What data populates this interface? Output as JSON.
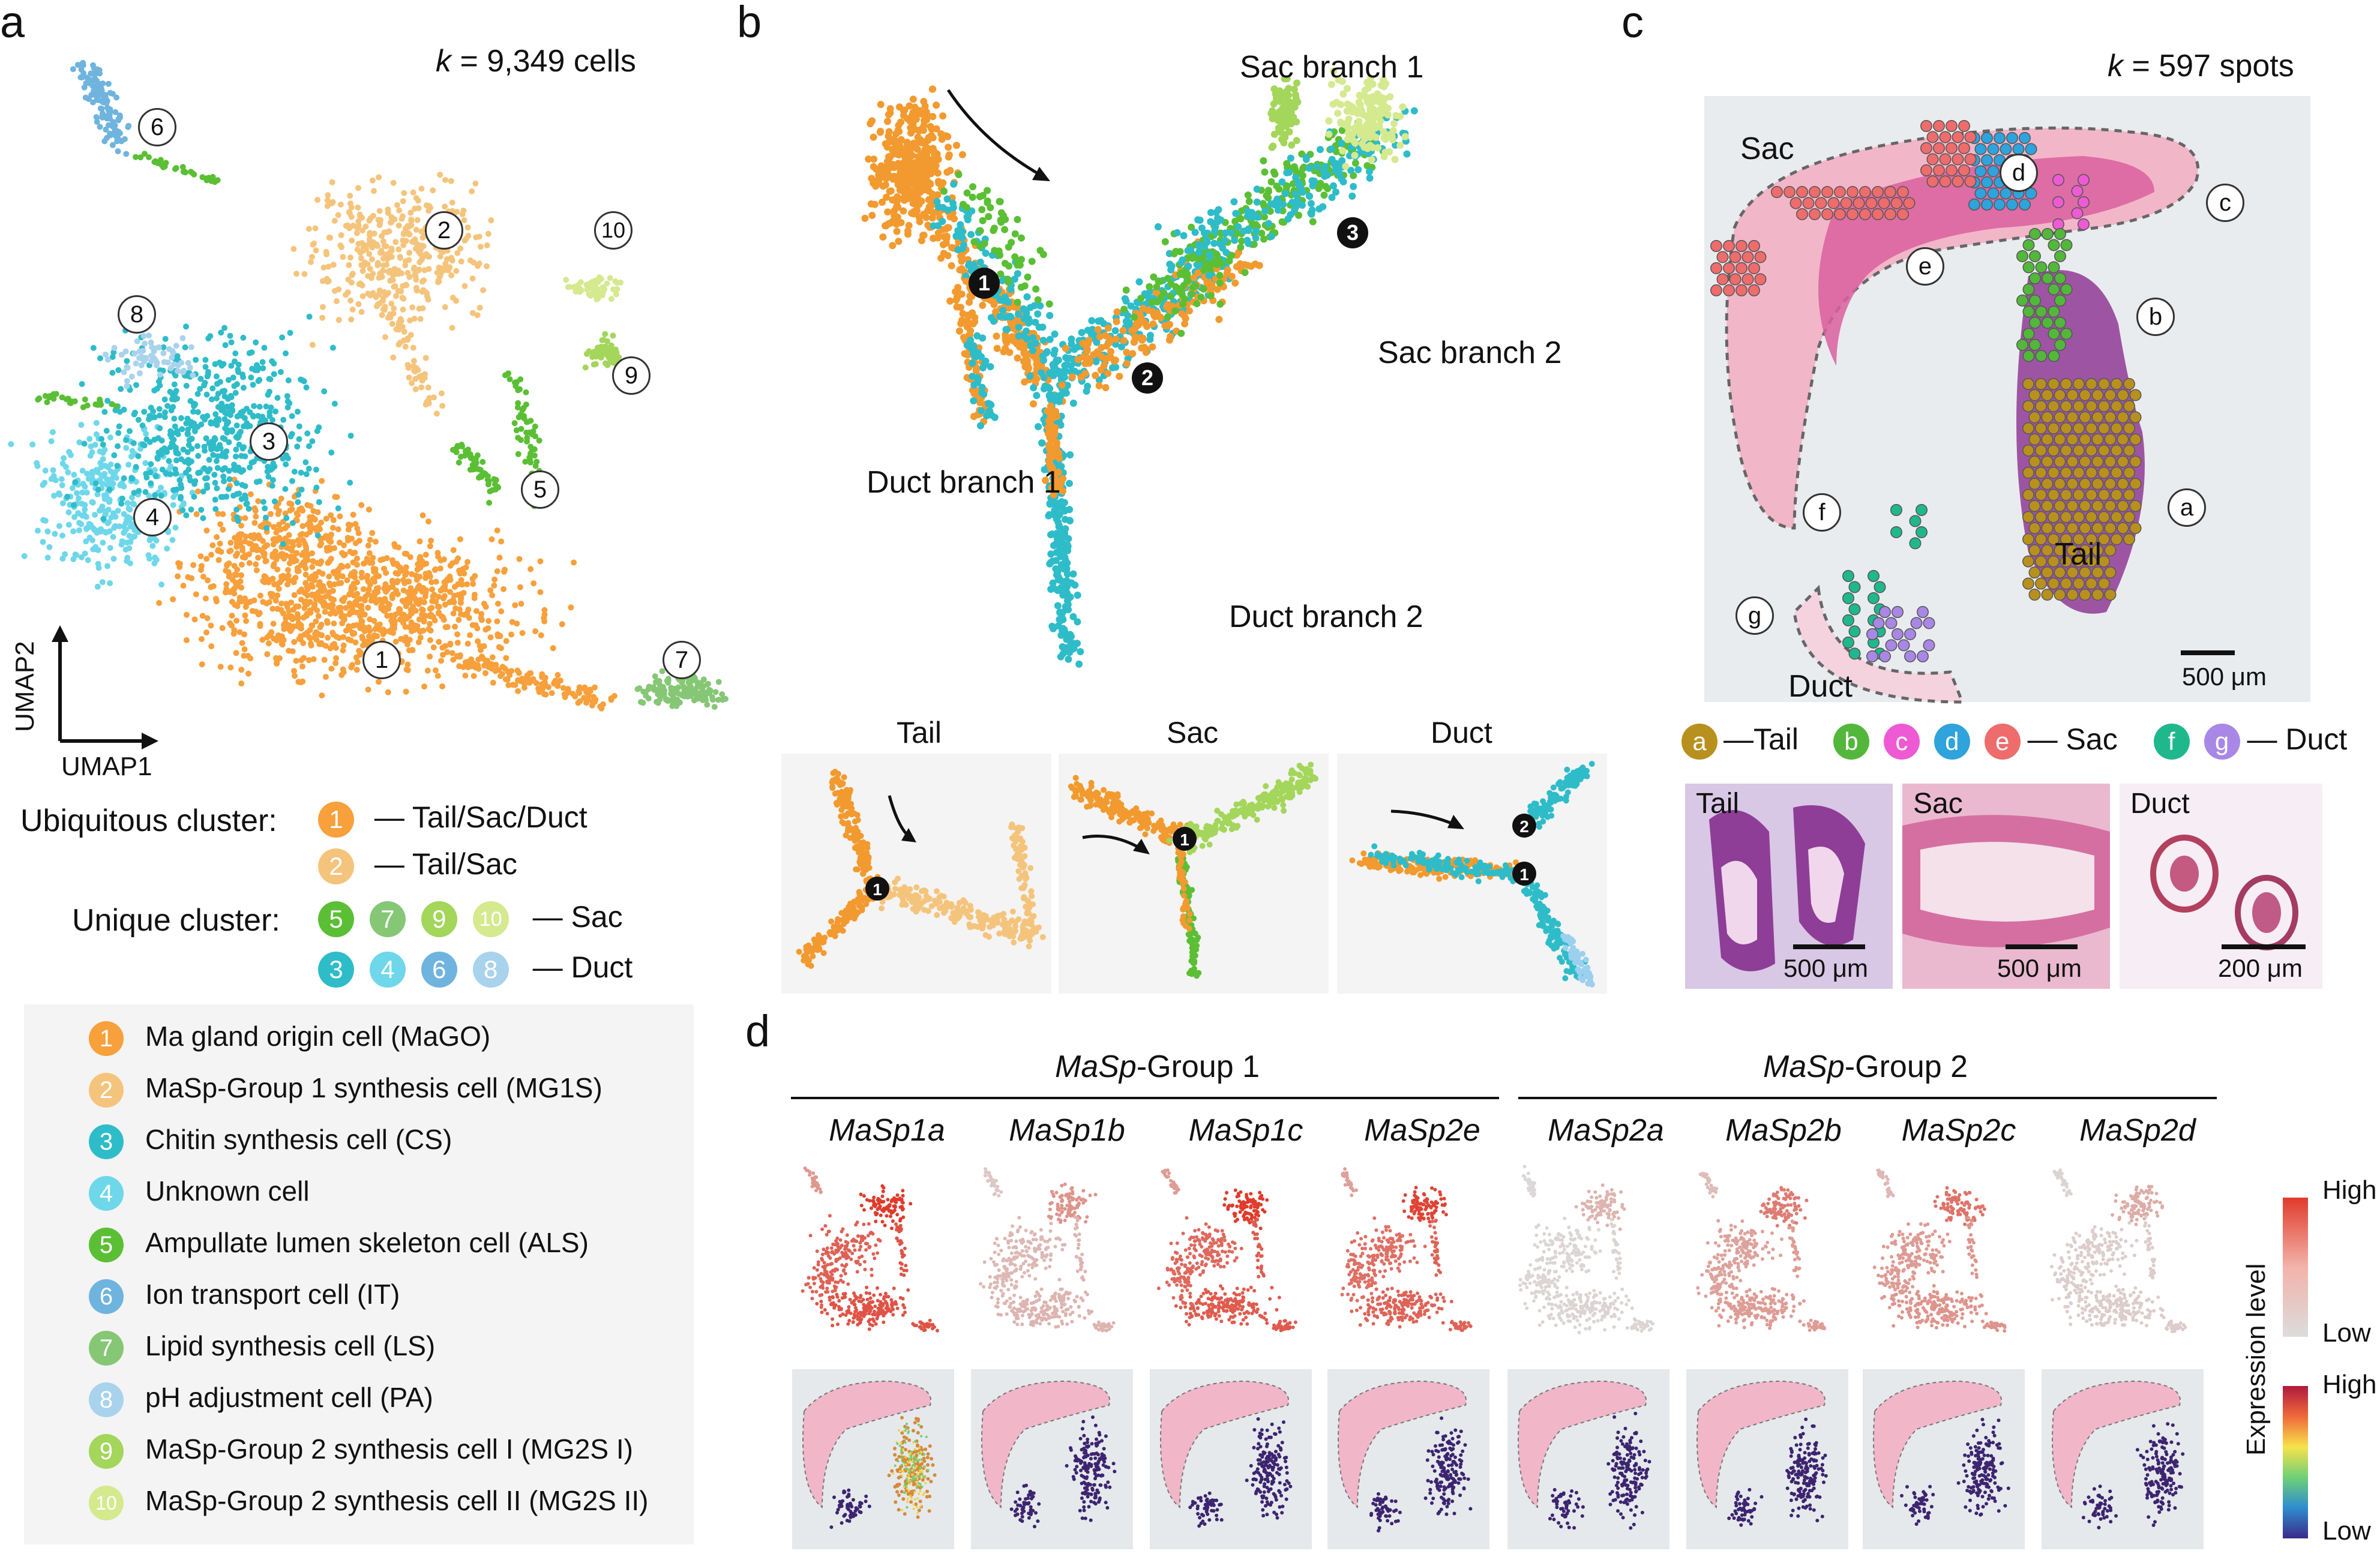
{
  "panel_labels": {
    "a": "a",
    "b": "b",
    "c": "c",
    "d": "d"
  },
  "panel_a": {
    "cell_count_k": "k",
    "cell_count": " = 9,349 cells",
    "axis_x": "UMAP1",
    "axis_y": "UMAP2",
    "cluster_numbers": [
      "1",
      "2",
      "3",
      "4",
      "5",
      "6",
      "7",
      "8",
      "9",
      "10"
    ],
    "ubiquitous_label": "Ubiquitous cluster:",
    "ubiquitous_1": "— Tail/Sac/Duct",
    "ubiquitous_2": "— Tail/Sac",
    "unique_label": "Unique cluster:",
    "unique_sac": "— Sac",
    "unique_duct": "— Duct",
    "colors": {
      "c1": "#f7a03c",
      "c2": "#f5c47c",
      "c3": "#2fbcc9",
      "c4": "#6fd7ea",
      "c5": "#5bbf35",
      "c6": "#6fb4df",
      "c7": "#86c776",
      "c8": "#a9d3ec",
      "c9": "#a3d65a",
      "c10": "#d5e98f"
    }
  },
  "legend": [
    {
      "num": "1",
      "label": "Ma gland origin cell (MaGO)"
    },
    {
      "num": "2",
      "label": "MaSp-Group 1 synthesis cell (MG1S)"
    },
    {
      "num": "3",
      "label": "Chitin synthesis cell (CS)"
    },
    {
      "num": "4",
      "label": "Unknown cell"
    },
    {
      "num": "5",
      "label": "Ampullate lumen skeleton cell (ALS)"
    },
    {
      "num": "6",
      "label": "Ion transport cell (IT)"
    },
    {
      "num": "7",
      "label": "Lipid synthesis cell (LS)"
    },
    {
      "num": "8",
      "label": "pH adjustment cell (PA)"
    },
    {
      "num": "9",
      "label": "MaSp-Group 2 synthesis cell I (MG2S I)"
    },
    {
      "num": "10",
      "label": "MaSp-Group 2 synthesis cell II (MG2S II)"
    }
  ],
  "panel_b": {
    "sac_branch_1": "Sac branch 1",
    "sac_branch_2": "Sac branch 2",
    "duct_branch_1": "Duct branch 1",
    "duct_branch_2": "Duct branch 2",
    "nodes": [
      "1",
      "2",
      "3"
    ],
    "sub_titles": [
      "Tail",
      "Sac",
      "Duct"
    ]
  },
  "panel_c": {
    "spot_count_k": "k",
    "spot_count": " = 597 spots",
    "region_sac": "Sac",
    "region_tail": "Tail",
    "region_duct": "Duct",
    "letters": [
      "a",
      "b",
      "c",
      "d",
      "e",
      "f",
      "g"
    ],
    "scale": "500 μm",
    "legend_tail": "—Tail",
    "legend_sac": "— Sac",
    "legend_duct": "— Duct",
    "histology": [
      {
        "title": "Tail",
        "scale": "500 μm"
      },
      {
        "title": "Sac",
        "scale": "500 μm"
      },
      {
        "title": "Duct",
        "scale": "200 μm"
      }
    ],
    "letter_colors": {
      "a": "#b8901e",
      "b": "#52b73a",
      "c": "#ee5ad4",
      "d": "#2ea3dc",
      "e": "#ee6c6c",
      "f": "#1fb88c",
      "g": "#a887e6"
    }
  },
  "panel_d": {
    "group1_italic": "MaSp",
    "group1_rest": "-Group 1",
    "group2_italic": "MaSp",
    "group2_rest": "-Group 2",
    "genes": [
      "MaSp1a",
      "MaSp1b",
      "MaSp1c",
      "MaSp2e",
      "MaSp2a",
      "MaSp2b",
      "MaSp2c",
      "MaSp2d"
    ],
    "colorbar_title": "Expression level",
    "high": "High",
    "low": "Low"
  }
}
